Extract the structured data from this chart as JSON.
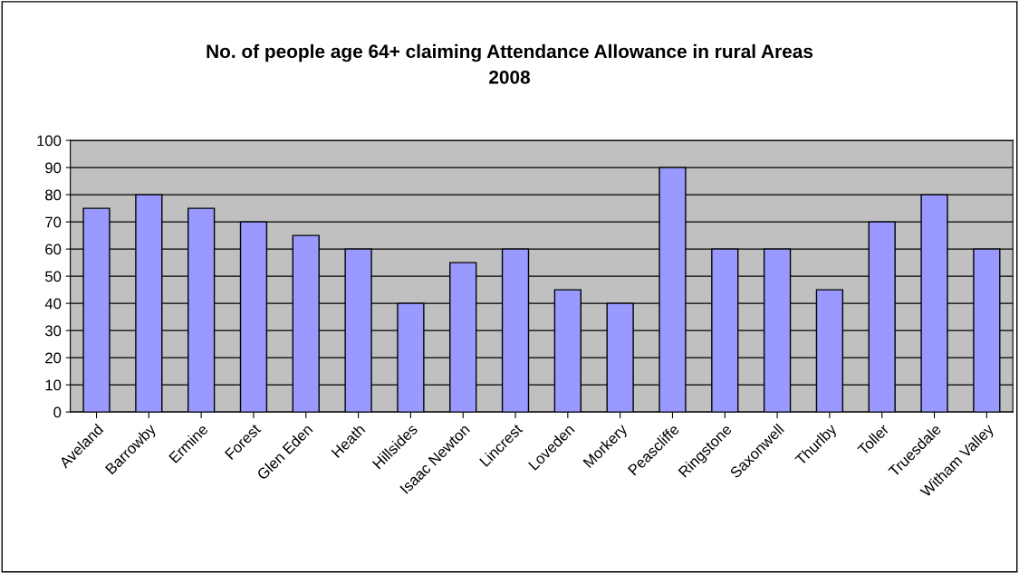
{
  "chart_data": {
    "type": "bar",
    "title": "No. of people age 64+ claiming Attendance Allowance in rural Areas\n2008",
    "categories": [
      "Aveland",
      "Barrowby",
      "Ermine",
      "Forest",
      "Glen Eden",
      "Heath",
      "Hillsides",
      "Isaac Newton",
      "Lincrest",
      "Loveden",
      "Morkery",
      "Peascliffe",
      "Ringstone",
      "Saxonwell",
      "Thurlby",
      "Toller",
      "Truesdale",
      "Witham Valley"
    ],
    "values": [
      75,
      80,
      75,
      70,
      65,
      60,
      40,
      55,
      60,
      45,
      40,
      90,
      60,
      60,
      45,
      70,
      80,
      60
    ],
    "color": "#9999ff",
    "ylim": [
      0,
      100
    ],
    "yticks": [
      0,
      10,
      20,
      30,
      40,
      50,
      60,
      70,
      80,
      90,
      100
    ],
    "grid": "y"
  }
}
